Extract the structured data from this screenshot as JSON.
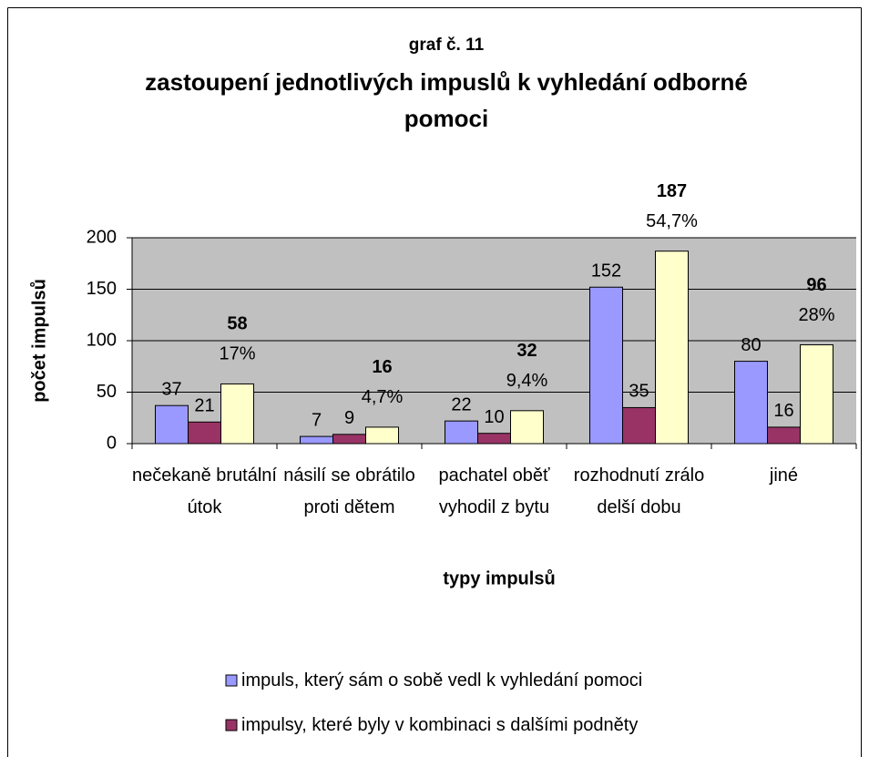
{
  "chart_data": {
    "type": "bar",
    "title": "graf č. 11",
    "subtitle": "zastoupení jednotlivých impuslů k vyhledání odborné pomoci",
    "y_label": "počet impulsů",
    "x_label": "typy impulsů",
    "categories": [
      "nečekaně brutální útok",
      "násilí se obrátilo proti dětem",
      "pachatel oběť vyhodil z bytu",
      "rozhodnutí zrálo delší dobu",
      "jiné"
    ],
    "series": [
      {
        "name": "impuls, který sám o sobě vedl k vyhledání pomoci",
        "color": "#9999ff",
        "values": [
          37,
          7,
          22,
          152,
          80
        ]
      },
      {
        "name": "impulsy, které byly v kombinaci s dalšími podněty",
        "color": "#993366",
        "values": [
          21,
          9,
          10,
          35,
          16
        ]
      },
      {
        "color": "#ffffcc",
        "values": [
          58,
          16,
          32,
          187,
          96
        ],
        "annotations": [
          "17%",
          "4,7%",
          "9,4%",
          "54,7%",
          "28%"
        ]
      }
    ],
    "ylim": [
      0,
      200
    ],
    "yticks": [
      0,
      50,
      100,
      150,
      200
    ],
    "grid": true,
    "plot_background": "#c0c0c0"
  }
}
